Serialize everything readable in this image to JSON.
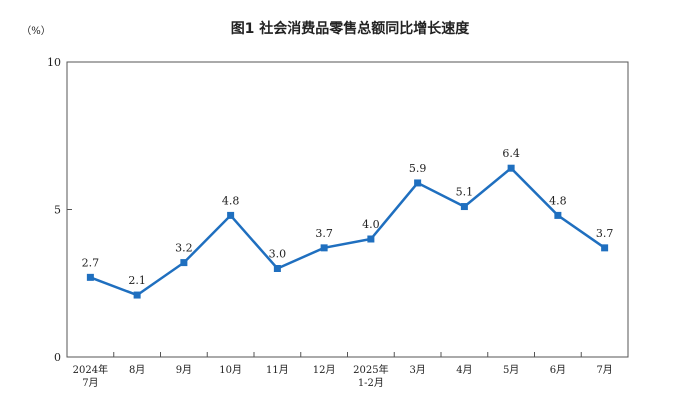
{
  "chart_data": {
    "type": "line",
    "title": "图1  社会消费品零售总额同比增长速度",
    "unit": "（%）",
    "categories": [
      [
        "2024年",
        "7月"
      ],
      [
        "8月"
      ],
      [
        "9月"
      ],
      [
        "10月"
      ],
      [
        "11月"
      ],
      [
        "12月"
      ],
      [
        "2025年",
        "1-2月"
      ],
      [
        "3月"
      ],
      [
        "4月"
      ],
      [
        "5月"
      ],
      [
        "6月"
      ],
      [
        "7月"
      ]
    ],
    "values": [
      2.7,
      2.1,
      3.2,
      4.8,
      3.0,
      3.7,
      4.0,
      5.9,
      5.1,
      6.4,
      4.8,
      3.7
    ],
    "value_labels": [
      "2.7",
      "2.1",
      "3.2",
      "4.8",
      "3.0",
      "3.7",
      "4.0",
      "5.9",
      "5.1",
      "6.4",
      "4.8",
      "3.7"
    ],
    "y_ticks": [
      "0",
      "5",
      "10"
    ],
    "ylim": [
      0,
      10
    ],
    "grid": false,
    "line_color": "#1f6fbf",
    "axis_color": "#555555"
  }
}
